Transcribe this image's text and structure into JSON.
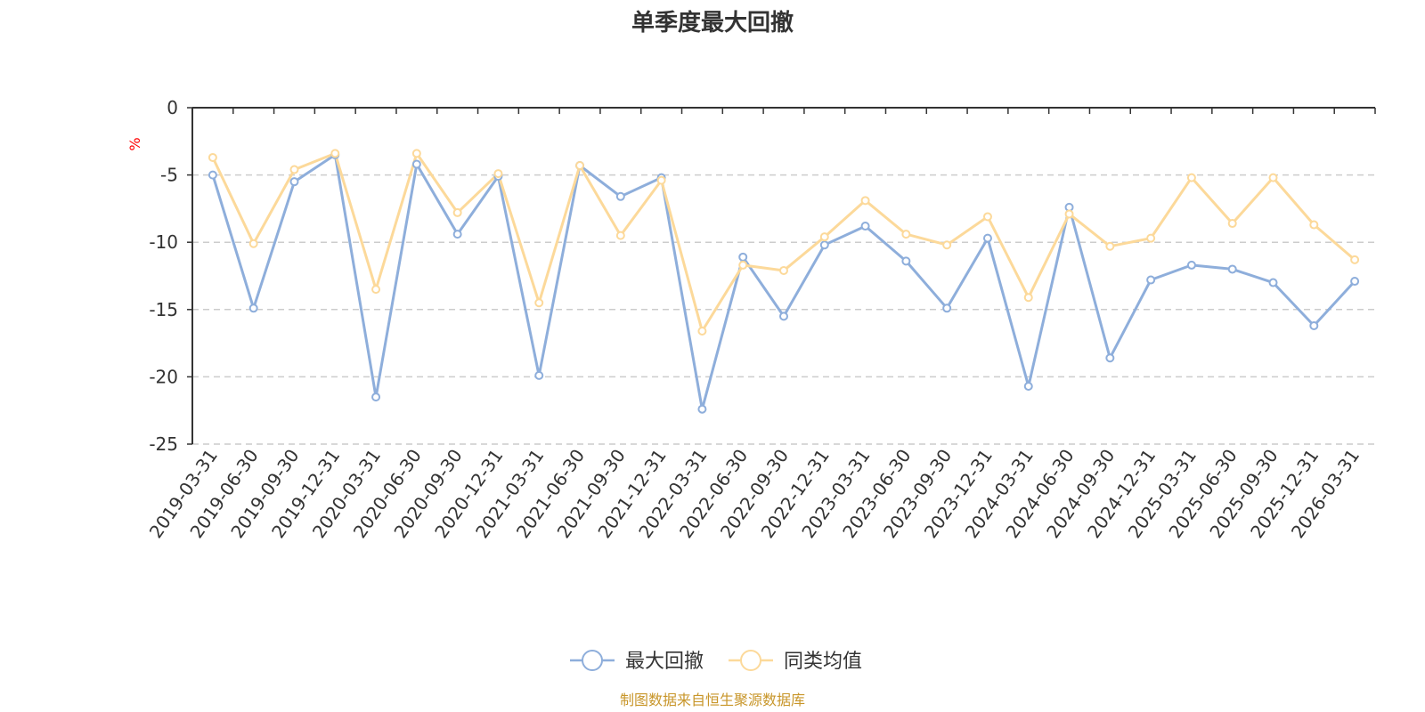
{
  "chart_data": {
    "type": "line",
    "title": "单季度最大回撤",
    "ylabel": "%",
    "ylim": [
      -25,
      0
    ],
    "yticks": [
      0,
      -5,
      -10,
      -15,
      -20,
      -25
    ],
    "grid": true,
    "categories": [
      "2019-03-31",
      "2019-06-30",
      "2019-09-30",
      "2019-12-31",
      "2020-03-31",
      "2020-06-30",
      "2020-09-30",
      "2020-12-31",
      "2021-03-31",
      "2021-06-30",
      "2021-09-30",
      "2021-12-31",
      "2022-03-31",
      "2022-06-30",
      "2022-09-30",
      "2022-12-31",
      "2023-03-31",
      "2023-06-30",
      "2023-09-30",
      "2023-12-31",
      "2024-03-31",
      "2024-06-30",
      "2024-09-30",
      "2024-12-31",
      "2025-03-31",
      "2025-06-30",
      "2025-09-30",
      "2025-12-31",
      "2026-03-31"
    ],
    "series": [
      {
        "name": "最大回撤",
        "color": "#8eaedb",
        "values": [
          -5.0,
          -14.9,
          -5.5,
          -3.5,
          -21.5,
          -4.2,
          -9.4,
          -5.1,
          -19.9,
          -4.3,
          -6.6,
          -5.2,
          -22.4,
          -11.1,
          -15.5,
          -10.2,
          -8.8,
          -11.4,
          -14.9,
          -9.7,
          -20.7,
          -7.4,
          -18.6,
          -12.8,
          -11.7,
          -12.0,
          -13.0,
          -16.2,
          -12.9
        ]
      },
      {
        "name": "同类均值",
        "color": "#fcd99a",
        "values": [
          -3.7,
          -10.1,
          -4.6,
          -3.4,
          -13.5,
          -3.4,
          -7.8,
          -4.9,
          -14.5,
          -4.3,
          -9.5,
          -5.4,
          -16.6,
          -11.7,
          -12.1,
          -9.6,
          -6.9,
          -9.4,
          -10.2,
          -8.1,
          -14.1,
          -7.9,
          -10.3,
          -9.7,
          -5.2,
          -8.6,
          -5.2,
          -8.7,
          -11.3
        ]
      }
    ]
  },
  "footer": {
    "source": "制图数据来自恒生聚源数据库"
  }
}
